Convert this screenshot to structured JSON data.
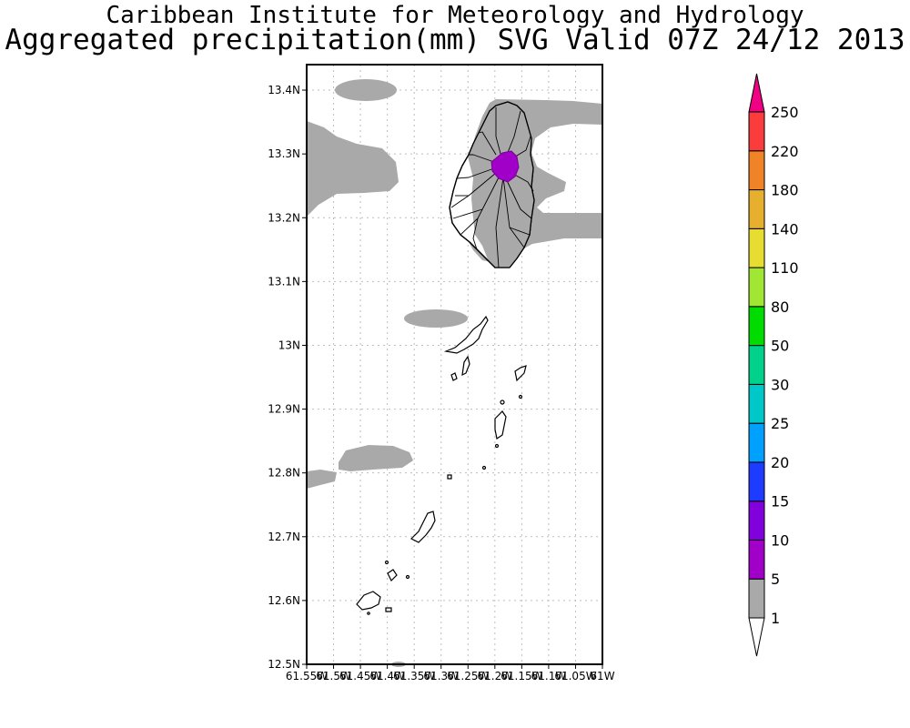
{
  "header": {
    "line1": "Caribbean Institute for Meteorology and Hydrology",
    "line2": "Aggregated precipitation(mm) SVG Valid 07Z 24/12 2013"
  },
  "map": {
    "lon_range": [
      -61.55,
      -61.0
    ],
    "lat_range": [
      12.5,
      13.44
    ],
    "y_ticks": [
      {
        "value": 13.4,
        "label": "13.4N"
      },
      {
        "value": 13.3,
        "label": "13.3N"
      },
      {
        "value": 13.2,
        "label": "13.2N"
      },
      {
        "value": 13.1,
        "label": "13.1N"
      },
      {
        "value": 13.0,
        "label": "13N"
      },
      {
        "value": 12.9,
        "label": "12.9N"
      },
      {
        "value": 12.8,
        "label": "12.8N"
      },
      {
        "value": 12.7,
        "label": "12.7N"
      },
      {
        "value": 12.6,
        "label": "12.6N"
      },
      {
        "value": 12.5,
        "label": "12.5N"
      }
    ],
    "x_ticks": [
      {
        "value": -61.55,
        "label": "61.55W"
      },
      {
        "value": -61.5,
        "label": "61.5W"
      },
      {
        "value": -61.45,
        "label": "61.45W"
      },
      {
        "value": -61.4,
        "label": "61.4W"
      },
      {
        "value": -61.35,
        "label": "61.35W"
      },
      {
        "value": -61.3,
        "label": "61.3W"
      },
      {
        "value": -61.25,
        "label": "61.25W"
      },
      {
        "value": -61.2,
        "label": "61.2W"
      },
      {
        "value": -61.15,
        "label": "61.15W"
      },
      {
        "value": -61.1,
        "label": "61.1W"
      },
      {
        "value": -61.05,
        "label": "61.05W"
      },
      {
        "value": -61.0,
        "label": "61W"
      }
    ]
  },
  "colorbar": {
    "levels": [
      {
        "label": "1",
        "color": "#a9a9a9"
      },
      {
        "label": "5",
        "color": "#a000c8"
      },
      {
        "label": "10",
        "color": "#8200dc"
      },
      {
        "label": "15",
        "color": "#1e3cff"
      },
      {
        "label": "20",
        "color": "#00a0ff"
      },
      {
        "label": "25",
        "color": "#00c8c8"
      },
      {
        "label": "30",
        "color": "#00d28c"
      },
      {
        "label": "50",
        "color": "#00dc00"
      },
      {
        "label": "80",
        "color": "#a0e632"
      },
      {
        "label": "110",
        "color": "#e6dc32"
      },
      {
        "label": "140",
        "color": "#e6af2d"
      },
      {
        "label": "180",
        "color": "#f08228"
      },
      {
        "label": "220",
        "color": "#fa3c3c"
      },
      {
        "label": "250",
        "color": ""
      }
    ],
    "top_color": "#f00082",
    "bottom_color": "#ffffff"
  }
}
